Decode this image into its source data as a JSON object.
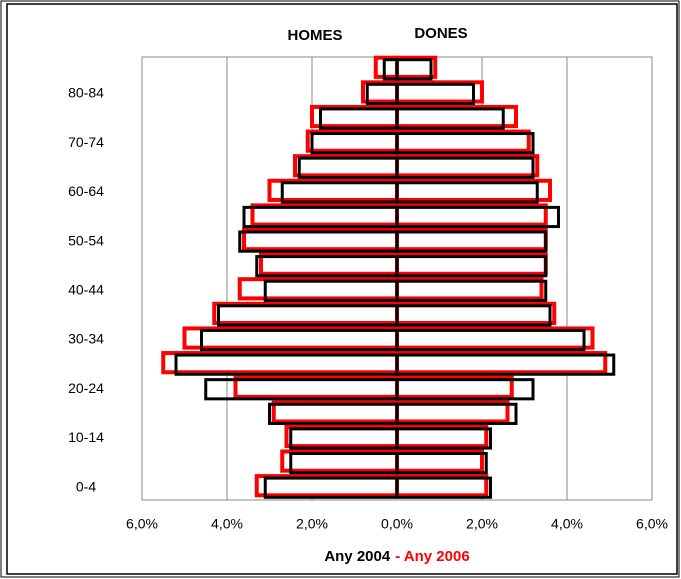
{
  "chart_data": {
    "type": "pyramid",
    "left_label": "HOMES",
    "right_label": "DONES",
    "categories": [
      "0-4",
      null,
      "10-14",
      null,
      "20-24",
      null,
      "30-34",
      null,
      "40-44",
      null,
      "50-54",
      null,
      "60-64",
      null,
      "70-74",
      null,
      "80-84",
      null
    ],
    "series": [
      {
        "name": "Any 2004",
        "color": "#000000",
        "homes": [
          3.1,
          2.5,
          2.5,
          3.0,
          4.5,
          5.2,
          4.6,
          4.2,
          3.1,
          3.3,
          3.7,
          3.6,
          2.7,
          2.3,
          2.0,
          1.8,
          0.7,
          0.3
        ],
        "dones": [
          2.2,
          2.1,
          2.2,
          2.8,
          3.2,
          5.1,
          4.4,
          3.6,
          3.5,
          3.5,
          3.5,
          3.8,
          3.3,
          3.2,
          3.2,
          2.5,
          1.8,
          0.8
        ]
      },
      {
        "name": "- Any 2006",
        "color": "#ff0000",
        "homes": [
          3.3,
          2.7,
          2.6,
          2.9,
          3.8,
          5.5,
          5.0,
          4.3,
          3.7,
          3.2,
          3.6,
          3.4,
          3.0,
          2.4,
          2.1,
          2.0,
          0.8,
          0.5
        ],
        "dones": [
          2.1,
          2.0,
          2.1,
          2.6,
          2.7,
          4.9,
          4.6,
          3.7,
          3.4,
          3.5,
          3.5,
          3.5,
          3.6,
          3.3,
          3.1,
          2.8,
          2.0,
          0.9
        ]
      }
    ],
    "xlim": [
      0,
      6
    ],
    "xticks": [
      {
        "value": 0,
        "label": "0,0%"
      },
      {
        "value": 2,
        "label": "2,0%"
      },
      {
        "value": 4,
        "label": "4,0%"
      },
      {
        "value": 6,
        "label": "6,0%"
      }
    ],
    "grid": true
  }
}
